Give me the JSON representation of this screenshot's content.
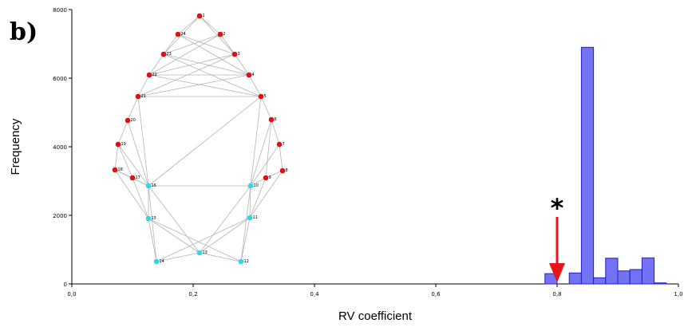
{
  "panel_label": "b)",
  "annotation": {
    "symbol": "*",
    "arrow_x": 0.8,
    "arrow_color": "#e8141a"
  },
  "chart_data": {
    "type": "bar",
    "xlabel": "RV coefficient",
    "ylabel": "Frequency",
    "xlim": [
      0.0,
      1.0
    ],
    "ylim": [
      0,
      8000
    ],
    "x_ticks": [
      "0,0",
      "0,2",
      "0,4",
      "0,6",
      "0,8",
      "1,0"
    ],
    "y_ticks": [
      "0",
      "2000",
      "4000",
      "6000",
      "8000"
    ],
    "bar_color": "#7272f2",
    "bar_edge_color": "#1e1ec8",
    "bin_width": 0.02,
    "bins": [
      {
        "x0": 0.78,
        "value": 300
      },
      {
        "x0": 0.8,
        "value": 0
      },
      {
        "x0": 0.82,
        "value": 320
      },
      {
        "x0": 0.84,
        "value": 6900
      },
      {
        "x0": 0.86,
        "value": 180
      },
      {
        "x0": 0.88,
        "value": 750
      },
      {
        "x0": 0.9,
        "value": 380
      },
      {
        "x0": 0.92,
        "value": 420
      },
      {
        "x0": 0.94,
        "value": 760
      },
      {
        "x0": 0.96,
        "value": 30
      }
    ]
  },
  "inset": {
    "red_color": "#e01010",
    "cyan_color": "#2ed8ea",
    "landmarks": [
      {
        "id": "1",
        "color": "red"
      },
      {
        "id": "2",
        "color": "red"
      },
      {
        "id": "3",
        "color": "red"
      },
      {
        "id": "4",
        "color": "red"
      },
      {
        "id": "5",
        "color": "red"
      },
      {
        "id": "6",
        "color": "red"
      },
      {
        "id": "7",
        "color": "red"
      },
      {
        "id": "8",
        "color": "red"
      },
      {
        "id": "9",
        "color": "red"
      },
      {
        "id": "10",
        "color": "cyan"
      },
      {
        "id": "11",
        "color": "cyan"
      },
      {
        "id": "12",
        "color": "cyan"
      },
      {
        "id": "13",
        "color": "cyan"
      },
      {
        "id": "14",
        "color": "cyan"
      },
      {
        "id": "15",
        "color": "cyan"
      },
      {
        "id": "16",
        "color": "cyan"
      },
      {
        "id": "17",
        "color": "red"
      },
      {
        "id": "18",
        "color": "red"
      },
      {
        "id": "19",
        "color": "red"
      },
      {
        "id": "20",
        "color": "red"
      },
      {
        "id": "21",
        "color": "red"
      },
      {
        "id": "22",
        "color": "red"
      },
      {
        "id": "23",
        "color": "red"
      },
      {
        "id": "24",
        "color": "red"
      }
    ]
  }
}
